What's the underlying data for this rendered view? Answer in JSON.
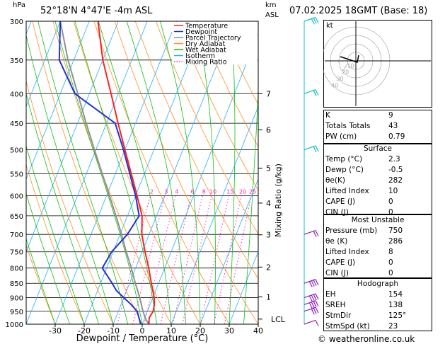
{
  "header": {
    "hpa_label": "hPa",
    "location": "52°18'N  4°47'E  -4m  ASL",
    "km_label": "km",
    "asl_label": "ASL",
    "datetime": "07.02.2025  18GMT  (Base: 18)"
  },
  "colors": {
    "temperature": "#ff2020",
    "dewpoint": "#2030e0",
    "parcel": "#909090",
    "dry_adiabat": "#ff9020",
    "wet_adiabat": "#10c010",
    "isotherm": "#20b0ff",
    "mixing_ratio": "#ff20c0",
    "wind": "#10c0c0"
  },
  "legend": [
    {
      "label": "Temperature",
      "color": "#ff2020",
      "style": "solid"
    },
    {
      "label": "Dewpoint",
      "color": "#2030e0",
      "style": "solid"
    },
    {
      "label": "Parcel Trajectory",
      "color": "#909090",
      "style": "solid"
    },
    {
      "label": "Dry Adiabat",
      "color": "#ff9020",
      "style": "solid"
    },
    {
      "label": "Wet Adiabat",
      "color": "#10c010",
      "style": "solid"
    },
    {
      "label": "Isotherm",
      "color": "#20b0ff",
      "style": "solid"
    },
    {
      "label": "Mixing Ratio",
      "color": "#ff20c0",
      "style": "dotted"
    }
  ],
  "chart_data": {
    "type": "line",
    "xlabel": "Dewpoint / Temperature (°C)",
    "ylabel_right": "Mixing Ratio (g/kg)",
    "xlim": [
      -40,
      40
    ],
    "ylim_hpa": [
      300,
      1000
    ],
    "y_scale": "log-pressure",
    "skew": true,
    "pressure_ticks": [
      300,
      350,
      400,
      450,
      500,
      550,
      600,
      650,
      700,
      750,
      800,
      850,
      900,
      950,
      1000
    ],
    "temperature_ticks": [
      -30,
      -20,
      -10,
      0,
      10,
      20,
      30,
      40
    ],
    "km_ticks": [
      {
        "label": "7",
        "p": 400
      },
      {
        "label": "6",
        "p": 462
      },
      {
        "label": "5",
        "p": 538
      },
      {
        "label": "4",
        "p": 618
      },
      {
        "label": "3",
        "p": 701
      },
      {
        "label": "2",
        "p": 797
      },
      {
        "label": "1",
        "p": 897
      },
      {
        "label": "LCL",
        "p": 980
      }
    ],
    "mixing_ratio_labels": [
      "2",
      "3",
      "4",
      "6",
      "8",
      "10",
      "15",
      "20",
      "25"
    ],
    "mixing_ratio_values": [
      2,
      3,
      4,
      6,
      8,
      10,
      15,
      20,
      25
    ],
    "series": [
      {
        "name": "Temperature",
        "p": [
          1000,
          975,
          950,
          925,
          900,
          875,
          850,
          800,
          750,
          700,
          650,
          600,
          550,
          500,
          450,
          400,
          350,
          300
        ],
        "t": [
          2.3,
          1.5,
          2.0,
          1.5,
          0.5,
          -1.0,
          -2.5,
          -5.5,
          -9.0,
          -12.5,
          -15.0,
          -19.5,
          -24.5,
          -30.0,
          -36.0,
          -42.5,
          -50.0,
          -57.0
        ]
      },
      {
        "name": "Dewpoint",
        "p": [
          1000,
          975,
          950,
          925,
          900,
          875,
          850,
          800,
          750,
          700,
          650,
          600,
          550,
          500,
          450,
          400,
          350,
          300
        ],
        "t": [
          -0.5,
          -2.0,
          -3.5,
          -6.5,
          -10.0,
          -13.5,
          -16.0,
          -21.5,
          -20.5,
          -17.5,
          -16.0,
          -20.0,
          -25.0,
          -30.5,
          -37.0,
          -55.0,
          -65.0,
          -70.0
        ]
      },
      {
        "name": "Parcel Trajectory",
        "p": [
          1000,
          980,
          950,
          900,
          850,
          800,
          750,
          700,
          650,
          600,
          550,
          500,
          450,
          400,
          350,
          300
        ],
        "t": [
          2.3,
          0.5,
          -1.5,
          -4.5,
          -8.0,
          -11.5,
          -15.5,
          -19.5,
          -24.0,
          -29.0,
          -34.5,
          -40.5,
          -47.0,
          -54.0,
          -62.0,
          -70.0
        ]
      }
    ]
  },
  "hodograph": {
    "kt_label": "kt",
    "ring_labels": [
      "10",
      "20",
      "30",
      "40"
    ]
  },
  "wind_barbs": [
    {
      "p": 300,
      "speed_kt": 25
    },
    {
      "p": 400,
      "speed_kt": 20
    },
    {
      "p": 500,
      "speed_kt": 20
    },
    {
      "p": 700,
      "speed_kt": 20
    },
    {
      "p": 850,
      "speed_kt": 35
    },
    {
      "p": 900,
      "speed_kt": 35
    },
    {
      "p": 925,
      "speed_kt": 35
    },
    {
      "p": 950,
      "speed_kt": 30
    },
    {
      "p": 1000,
      "speed_kt": 10
    }
  ],
  "indices": {
    "top": [
      {
        "k": "K",
        "v": "9"
      },
      {
        "k": "Totals Totals",
        "v": "43"
      },
      {
        "k": "PW (cm)",
        "v": "0.79"
      }
    ],
    "surface_title": "Surface",
    "surface": [
      {
        "k": "Temp (°C)",
        "v": "2.3"
      },
      {
        "k": "Dewp (°C)",
        "v": "-0.5"
      },
      {
        "k": "θe(K)",
        "v": "282"
      },
      {
        "k": "Lifted Index",
        "v": "10"
      },
      {
        "k": "CAPE (J)",
        "v": "0"
      },
      {
        "k": "CIN (J)",
        "v": "0"
      }
    ],
    "unstable_title": "Most Unstable",
    "unstable": [
      {
        "k": "Pressure (mb)",
        "v": "750"
      },
      {
        "k": "θe (K)",
        "v": "286"
      },
      {
        "k": "Lifted Index",
        "v": "8"
      },
      {
        "k": "CAPE (J)",
        "v": "0"
      },
      {
        "k": "CIN (J)",
        "v": "0"
      }
    ],
    "hodograph_title": "Hodograph",
    "hodograph": [
      {
        "k": "EH",
        "v": "154"
      },
      {
        "k": "SREH",
        "v": "138"
      },
      {
        "k": "StmDir",
        "v": "125°"
      },
      {
        "k": "StmSpd (kt)",
        "v": "23"
      }
    ]
  },
  "copyright": "© weatheronline.co.uk"
}
